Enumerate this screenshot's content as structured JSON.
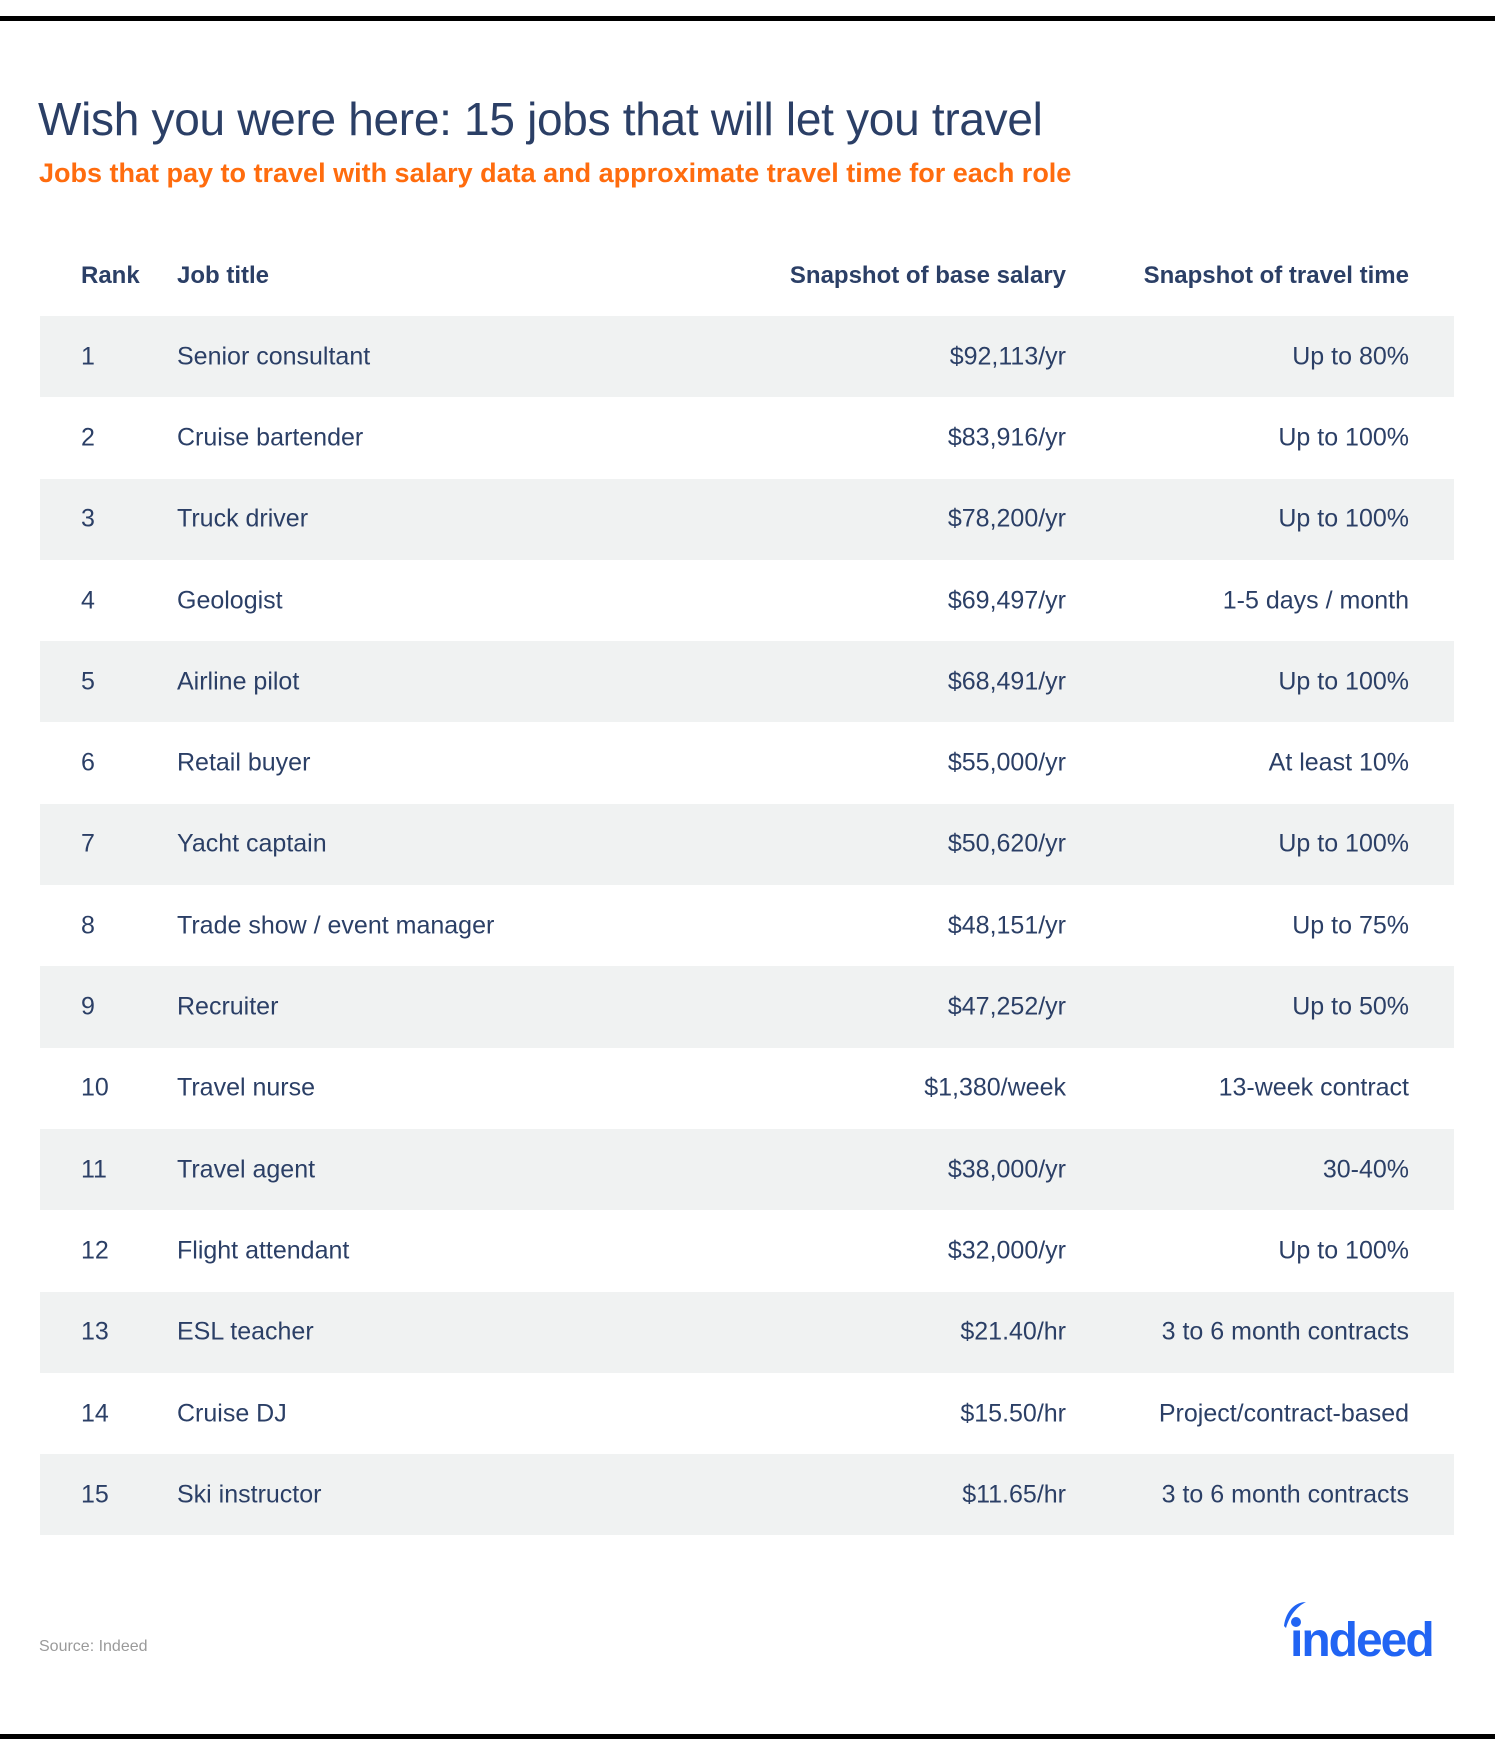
{
  "title": "Wish you were here: 15 jobs that will let you travel",
  "subtitle": "Jobs that pay to travel with salary data and approximate travel time for each role",
  "table": {
    "headers": [
      "Rank",
      "Job title",
      "Snapshot of base salary",
      "Snapshot of travel time"
    ],
    "rows": [
      [
        "1",
        "Senior consultant",
        "$92,113/yr",
        "Up to 80%"
      ],
      [
        "2",
        "Cruise bartender",
        "$83,916/yr",
        "Up to 100%"
      ],
      [
        "3",
        "Truck driver",
        "$78,200/yr",
        "Up to 100%"
      ],
      [
        "4",
        "Geologist",
        "$69,497/yr",
        "1-5 days / month"
      ],
      [
        "5",
        "Airline pilot",
        "$68,491/yr",
        "Up to 100%"
      ],
      [
        "6",
        "Retail buyer",
        "$55,000/yr",
        "At least 10%"
      ],
      [
        "7",
        "Yacht captain",
        "$50,620/yr",
        "Up to 100%"
      ],
      [
        "8",
        "Trade show / event manager",
        "$48,151/yr",
        "Up to 75%"
      ],
      [
        "9",
        "Recruiter",
        "$47,252/yr",
        "Up to 50%"
      ],
      [
        "10",
        "Travel nurse",
        "$1,380/week",
        "13-week contract"
      ],
      [
        "11",
        "Travel agent",
        "$38,000/yr",
        "30-40%"
      ],
      [
        "12",
        "Flight attendant",
        "$32,000/yr",
        "Up to 100%"
      ],
      [
        "13",
        "ESL teacher",
        "$21.40/hr",
        "3 to 6 month contracts"
      ],
      [
        "14",
        "Cruise DJ",
        "$15.50/hr",
        "Project/contract-based"
      ],
      [
        "15",
        "Ski instructor",
        "$11.65/hr",
        "3 to 6 month contracts"
      ]
    ]
  },
  "source": "Source: Indeed",
  "logo": {
    "text": "indeed",
    "color": "#2164f3"
  },
  "colors": {
    "title": "#2b3f66",
    "subtitle": "#ff6c0e",
    "stripe": "#f0f2f2"
  }
}
